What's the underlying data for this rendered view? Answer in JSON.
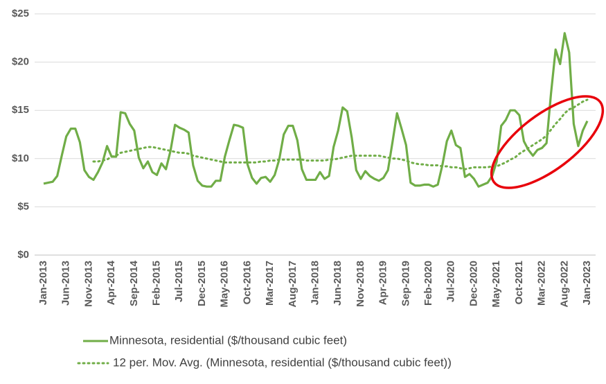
{
  "chart_data": {
    "type": "line",
    "categories": [
      "Jan-2013",
      null,
      null,
      null,
      null,
      "Jun-2013",
      null,
      null,
      null,
      null,
      "Nov-2013",
      null,
      null,
      null,
      null,
      "Apr-2014",
      null,
      null,
      null,
      null,
      "Sep-2014",
      null,
      null,
      null,
      null,
      "Feb-2015",
      null,
      null,
      null,
      null,
      "Jul-2015",
      null,
      null,
      null,
      null,
      "Dec-2015",
      null,
      null,
      null,
      null,
      "May-2016",
      null,
      null,
      null,
      null,
      "Oct-2016",
      null,
      null,
      null,
      null,
      "Mar-2017",
      null,
      null,
      null,
      null,
      "Aug-2017",
      null,
      null,
      null,
      null,
      "Jan-2018",
      null,
      null,
      null,
      null,
      "Jun-2018",
      null,
      null,
      null,
      null,
      "Nov-2018",
      null,
      null,
      null,
      null,
      "Apr-2019",
      null,
      null,
      null,
      null,
      "Sep-2019",
      null,
      null,
      null,
      null,
      "Feb-2020",
      null,
      null,
      null,
      null,
      "Jul-2020",
      null,
      null,
      null,
      null,
      "Dec-2020",
      null,
      null,
      null,
      null,
      "May-2021",
      null,
      null,
      null,
      null,
      "Oct-2021",
      null,
      null,
      null,
      null,
      "Mar-2022",
      null,
      null,
      null,
      null,
      "Aug-2022",
      null,
      null,
      null,
      null,
      "Jan-2023"
    ],
    "series": [
      {
        "name": "Minnesota, residential ($/thousand cubic feet)",
        "color": "#70ad47",
        "style": "solid",
        "values": [
          7.4,
          7.5,
          7.6,
          8.2,
          10.3,
          12.3,
          13.1,
          13.1,
          11.7,
          8.8,
          8.1,
          7.8,
          8.6,
          9.6,
          11.3,
          10.2,
          10.2,
          14.8,
          14.7,
          13.6,
          12.9,
          10.1,
          9.0,
          9.7,
          8.6,
          8.3,
          9.5,
          8.9,
          10.8,
          13.5,
          13.2,
          13.0,
          12.7,
          9.3,
          7.7,
          7.2,
          7.1,
          7.1,
          7.7,
          7.7,
          10.2,
          11.9,
          13.5,
          13.4,
          13.2,
          9.4,
          8.0,
          7.4,
          8.0,
          8.1,
          7.6,
          8.3,
          9.9,
          12.5,
          13.4,
          13.4,
          11.9,
          8.9,
          7.8,
          7.8,
          7.8,
          8.6,
          7.9,
          8.2,
          11.2,
          12.9,
          15.3,
          14.9,
          12.2,
          8.8,
          7.9,
          8.7,
          8.2,
          7.9,
          7.7,
          8.0,
          8.8,
          11.7,
          14.7,
          13.1,
          11.4,
          7.5,
          7.2,
          7.2,
          7.3,
          7.3,
          7.1,
          7.3,
          9.3,
          11.8,
          12.9,
          11.4,
          11.1,
          8.1,
          8.4,
          7.9,
          7.1,
          7.3,
          7.5,
          8.2,
          9.7,
          13.4,
          14.0,
          15.0,
          15.0,
          14.5,
          11.8,
          10.9,
          10.3,
          10.9,
          11.1,
          11.6,
          16.8,
          21.3,
          19.8,
          23.0,
          21.0,
          13.6,
          11.3,
          12.9,
          13.9
        ]
      },
      {
        "name": "12 per. Mov. Avg. (Minnesota, residential ($/thousand cubic feet))",
        "color": "#70ad47",
        "style": "dotted",
        "values": [
          null,
          null,
          null,
          null,
          null,
          null,
          null,
          null,
          null,
          null,
          null,
          9.7,
          9.7,
          9.8,
          9.9,
          10.2,
          10.3,
          10.6,
          10.7,
          10.8,
          10.9,
          11.0,
          11.1,
          11.2,
          11.2,
          11.1,
          11.0,
          10.9,
          10.8,
          10.7,
          10.6,
          10.6,
          10.5,
          10.3,
          10.2,
          10.1,
          10.0,
          9.9,
          9.8,
          9.7,
          9.6,
          9.6,
          9.6,
          9.6,
          9.6,
          9.6,
          9.6,
          9.6,
          9.7,
          9.7,
          9.8,
          9.8,
          9.9,
          9.9,
          9.9,
          9.9,
          9.9,
          9.9,
          9.8,
          9.8,
          9.8,
          9.8,
          9.8,
          9.9,
          9.9,
          10.0,
          10.1,
          10.2,
          10.3,
          10.3,
          10.3,
          10.3,
          10.3,
          10.3,
          10.3,
          10.2,
          10.1,
          10.0,
          10.0,
          9.9,
          9.8,
          9.6,
          9.5,
          9.4,
          9.4,
          9.3,
          9.3,
          9.3,
          9.2,
          9.2,
          9.1,
          9.1,
          9.0,
          8.9,
          9.0,
          9.1,
          9.1,
          9.1,
          9.1,
          9.2,
          9.2,
          9.4,
          9.6,
          9.9,
          10.1,
          10.5,
          10.8,
          11.1,
          11.4,
          11.7,
          12.0,
          12.4,
          13.0,
          13.6,
          14.1,
          14.7,
          15.1,
          15.3,
          15.6,
          15.9,
          16.1
        ]
      }
    ],
    "ylim": [
      0,
      25
    ],
    "yticks": [
      {
        "value": 0,
        "label": "$0"
      },
      {
        "value": 5,
        "label": "$5"
      },
      {
        "value": 10,
        "label": "$10"
      },
      {
        "value": 15,
        "label": "$15"
      },
      {
        "value": 20,
        "label": "$20"
      },
      {
        "value": 25,
        "label": "$25"
      }
    ],
    "grid": true,
    "legend": "bottom"
  }
}
